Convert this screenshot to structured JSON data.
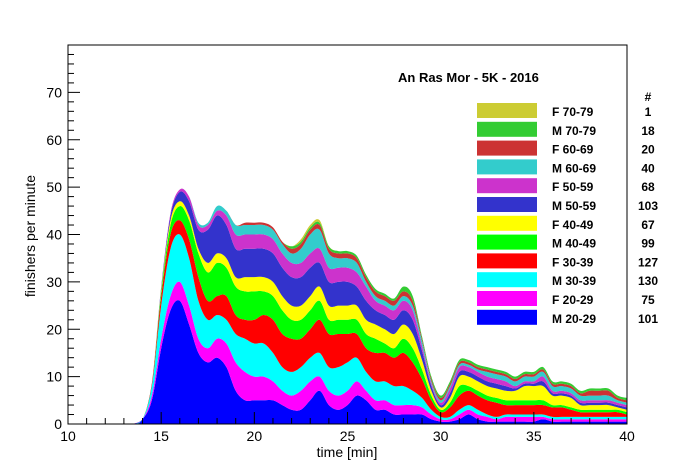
{
  "chart_data": {
    "type": "area",
    "stacked": true,
    "title": "An Ras Mor - 5K - 2016",
    "xlabel": "time [min]",
    "ylabel": "finishers per minute",
    "xlim": [
      10,
      40
    ],
    "ylim": [
      0,
      80
    ],
    "x_ticks": [
      10,
      15,
      20,
      25,
      30,
      35,
      40
    ],
    "y_ticks": [
      0,
      10,
      20,
      30,
      40,
      50,
      60,
      70
    ],
    "grid": false,
    "legend_position": "right",
    "legend_count_header": "#",
    "x": [
      13.5,
      14,
      14.5,
      15,
      15.5,
      16,
      16.5,
      17,
      17.5,
      18,
      18.5,
      19,
      19.5,
      20,
      20.5,
      21,
      21.5,
      22,
      22.5,
      23,
      23.5,
      24,
      24.5,
      25,
      25.5,
      26,
      26.5,
      27,
      27.5,
      28,
      28.5,
      29,
      29.5,
      30,
      30.5,
      31,
      31.5,
      32,
      32.5,
      33,
      33.5,
      34,
      34.5,
      35,
      35.5,
      36,
      36.5,
      37,
      37.5,
      38,
      38.5,
      39,
      39.5,
      40
    ],
    "series": [
      {
        "name": "M 20-29",
        "count": "101",
        "color": "#0000ff",
        "values": [
          0,
          1,
          5,
          16,
          24,
          26,
          21,
          15,
          13,
          14,
          12,
          7,
          5,
          5,
          5,
          5,
          4,
          3,
          3,
          5,
          7,
          4,
          3,
          4,
          6,
          5,
          3,
          3,
          2,
          2,
          2,
          2,
          1,
          0.5,
          0.5,
          1,
          2,
          1,
          0.5,
          0.5,
          0.5,
          0.5,
          0.5,
          0.5,
          1,
          0.5,
          0.5,
          0.5,
          0.5,
          0.5,
          0.5,
          0.5,
          0.5,
          0.5
        ]
      },
      {
        "name": "F 20-29",
        "count": "75",
        "color": "#ff00ff",
        "values": [
          0,
          0,
          1,
          2,
          3,
          4,
          4,
          3,
          3,
          4,
          5,
          6,
          6,
          5,
          5,
          4,
          3,
          3,
          4,
          4,
          3,
          3,
          3,
          3,
          3,
          2,
          2,
          2,
          2,
          2,
          2,
          1.5,
          1,
          0.5,
          0.5,
          1,
          1,
          1,
          1,
          0.5,
          1,
          1,
          1,
          1,
          0.5,
          0.5,
          0.5,
          0.5,
          0.5,
          0.5,
          0.5,
          0.5,
          0.5,
          0.5
        ]
      },
      {
        "name": "M 30-39",
        "count": "130",
        "color": "#00ffff",
        "values": [
          0,
          0,
          2,
          7,
          10,
          10,
          10,
          8,
          6,
          5,
          5,
          6,
          7,
          7,
          7,
          6,
          5,
          5,
          5,
          5,
          5,
          5,
          6,
          6,
          5,
          4,
          4,
          4,
          4,
          4,
          3,
          2,
          1,
          0.5,
          0.5,
          1,
          1,
          1,
          0.5,
          0.5,
          0.5,
          0.5,
          0.5,
          0.5,
          0.5,
          0.5,
          0.5,
          0.5,
          0.5,
          0.5,
          0.5,
          0.5,
          0.5,
          0.5
        ]
      },
      {
        "name": "F 30-39",
        "count": "127",
        "color": "#ff0000",
        "values": [
          0,
          0,
          0.5,
          2,
          3,
          3,
          4,
          5,
          4,
          4,
          5,
          4,
          4,
          5,
          6,
          7,
          7,
          7,
          6,
          6,
          7,
          7,
          7,
          6,
          5,
          5,
          6,
          6,
          6,
          7,
          6,
          4,
          2,
          1,
          2,
          3,
          3,
          3,
          3,
          3,
          2,
          2,
          2,
          2,
          2,
          2,
          2,
          1.5,
          1,
          1,
          1,
          1,
          1,
          0.5
        ]
      },
      {
        "name": "M 40-49",
        "count": "99",
        "color": "#00ff00",
        "values": [
          0,
          0,
          0,
          1,
          2,
          3,
          4,
          5,
          6,
          7,
          6,
          6,
          6,
          6,
          5,
          5,
          5,
          4,
          4,
          4,
          4,
          3,
          3,
          3,
          3,
          3,
          3,
          2,
          2,
          3,
          3,
          2,
          1,
          0.5,
          1,
          2,
          1,
          1,
          1,
          1,
          1,
          1,
          1,
          1,
          1,
          0.5,
          0.5,
          0.5,
          0.5,
          0.5,
          0.5,
          0.5,
          0.5,
          0.5
        ]
      },
      {
        "name": "F 40-49",
        "count": "67",
        "color": "#ffff00",
        "values": [
          0,
          0,
          0,
          0.5,
          1,
          1,
          1,
          1,
          2,
          2,
          2,
          2,
          3,
          3,
          3,
          3,
          3,
          3,
          3,
          3,
          3,
          3,
          3,
          3,
          3,
          3,
          3,
          3,
          3,
          3,
          3,
          2,
          1,
          0.5,
          1,
          2,
          2,
          2,
          2,
          2,
          2,
          2,
          3,
          3,
          3,
          2,
          2,
          2,
          1,
          1,
          1,
          1,
          0.5,
          0.5
        ]
      },
      {
        "name": "M 50-59",
        "count": "103",
        "color": "#3333cc",
        "values": [
          0,
          0,
          0,
          0.5,
          1,
          2,
          3,
          4,
          7,
          8,
          7,
          6,
          6,
          6,
          6,
          6,
          6,
          6,
          6,
          6,
          5,
          5,
          5,
          5,
          4,
          4,
          3,
          3,
          3,
          3,
          3,
          2,
          1,
          0.5,
          1,
          1,
          1,
          1,
          1,
          1,
          1,
          0.5,
          0.5,
          0.5,
          1,
          0.5,
          0.5,
          0.5,
          0.5,
          0.5,
          0.5,
          0.5,
          0.5,
          0.5
        ]
      },
      {
        "name": "F 50-59",
        "count": "68",
        "color": "#cc33cc",
        "values": [
          0,
          0,
          0,
          0,
          0.5,
          0.5,
          1,
          1,
          1,
          1,
          2,
          3,
          3,
          3,
          3,
          3,
          3,
          3,
          3,
          3,
          3,
          3,
          3,
          3,
          3,
          3,
          2,
          2,
          2,
          2,
          2,
          1,
          0.5,
          0.5,
          1,
          1,
          1,
          1,
          1,
          1,
          1,
          0.5,
          0.5,
          0.5,
          1,
          0.5,
          0.5,
          0.5,
          0.5,
          0.5,
          0.5,
          0.5,
          0.5,
          0.5
        ]
      },
      {
        "name": "M 60-69",
        "count": "40",
        "color": "#33cccc",
        "values": [
          0,
          0,
          0,
          0,
          0,
          0,
          0,
          0.5,
          0.5,
          1,
          1,
          2,
          2,
          2,
          2,
          2,
          2,
          2,
          3,
          4,
          4,
          3,
          2,
          2,
          2,
          1,
          1,
          1,
          1,
          1,
          1,
          1,
          0.5,
          0.5,
          0.5,
          0.5,
          0.5,
          0.5,
          1,
          1,
          1,
          1,
          1,
          1,
          1,
          1,
          1,
          1,
          1,
          1,
          1,
          1,
          0.5,
          0.5
        ]
      },
      {
        "name": "F 60-69",
        "count": "20",
        "color": "#cc3333",
        "values": [
          0,
          0,
          0,
          0,
          0,
          0,
          0,
          0,
          0,
          0,
          0,
          0,
          0.5,
          0.5,
          0.5,
          0.5,
          0.5,
          1,
          1,
          1,
          1,
          1,
          1,
          1,
          1,
          1,
          1,
          1,
          1,
          1,
          1,
          0.5,
          0.5,
          0.5,
          0.5,
          0.5,
          0.5,
          0.5,
          0.5,
          0.5,
          0.5,
          0.5,
          0.5,
          0.5,
          0.5,
          0.5,
          0.5,
          0.5,
          0.5,
          1,
          1,
          1,
          0.5,
          0.5
        ]
      },
      {
        "name": "M 70-79",
        "count": "18",
        "color": "#33cc33",
        "values": [
          0,
          0,
          0,
          0,
          0,
          0,
          0,
          0,
          0,
          0,
          0,
          0,
          0,
          0,
          0,
          0,
          0,
          0.5,
          0.5,
          0.5,
          0.5,
          0.5,
          0.5,
          0.5,
          0.5,
          0.5,
          0.5,
          0.5,
          0.5,
          1,
          1,
          0.5,
          0.5,
          0.5,
          0.5,
          0.5,
          0.5,
          0.5,
          0.5,
          0.5,
          0.5,
          0.5,
          0.5,
          0.5,
          0.5,
          0.5,
          0.5,
          0.5,
          0.5,
          0.5,
          0.5,
          0.5,
          0.5,
          0.5
        ]
      },
      {
        "name": "F 70-79",
        "count": "1",
        "color": "#cccc33",
        "values": [
          0,
          0,
          0,
          0,
          0,
          0,
          0,
          0,
          0,
          0,
          0,
          0,
          0,
          0,
          0,
          0,
          0,
          0,
          0.5,
          0.5,
          0.5,
          0,
          0,
          0,
          0,
          0,
          0,
          0,
          0,
          0,
          0,
          0,
          0,
          0,
          0,
          0,
          0,
          0,
          0,
          0,
          0,
          0,
          0,
          0,
          0,
          0,
          0,
          0,
          0,
          0,
          0,
          0,
          0,
          0
        ]
      }
    ]
  }
}
